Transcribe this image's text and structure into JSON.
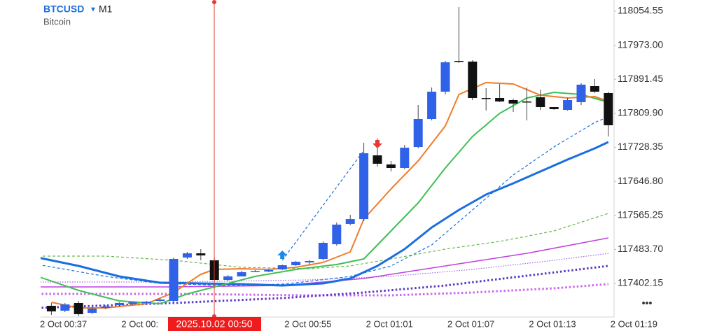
{
  "chart_data": {
    "type": "candlestick",
    "symbol": "BTCUSD",
    "timeframe": "M1",
    "subtitle": "Bitcoin",
    "crosshair_label": "2025.10.02 00:50",
    "up_color": "#2f62e8",
    "down_color": "#111111",
    "categories": [
      "2 Oct 00:37",
      null,
      null,
      null,
      null,
      null,
      "2 Oct 00:",
      null,
      null,
      null,
      null,
      null,
      null,
      null,
      null,
      null,
      null,
      null,
      "2 Oct 00:55",
      null,
      null,
      null,
      null,
      null,
      "2 Oct 01:01",
      null,
      null,
      null,
      null,
      null,
      "2 Oct 01:07",
      null,
      null,
      null,
      null,
      null,
      "2 Oct 01:13",
      null,
      null,
      null,
      null,
      null,
      "2 Oct 01:19"
    ],
    "open": [
      null,
      117348.6,
      117336.9,
      117355.3,
      117331.8,
      117343.5,
      117350.2,
      117353.6,
      117355.3,
      117360.3,
      117360.3,
      117464.3,
      117474.3,
      117457.6,
      117410.6,
      117419.0,
      117430.7,
      117430.7,
      117435.8,
      117445.8,
      117452.5,
      117460.9,
      117496.1,
      117544.8,
      117556.4,
      117709.1,
      117687.3,
      117678.9,
      117729.2,
      117796.3,
      117861.7,
      117935.5,
      117933.8,
      117846.6,
      117846.6,
      117841.6,
      117838.2,
      117848.3,
      117824.8,
      117818.1,
      117836.6,
      117875.1,
      117858.4
    ],
    "high": [
      null,
      117355.3,
      117355.3,
      117360.3,
      117346.9,
      117350.2,
      117356.9,
      117358.6,
      117360.3,
      117367.0,
      117464.3,
      117477.7,
      117484.4,
      117464.3,
      117422.4,
      117432.4,
      117434.1,
      117435.8,
      117447.5,
      117455.9,
      117457.6,
      117502.8,
      117548.1,
      117566.6,
      117739.3,
      117749.4,
      117695.7,
      117734.3,
      117829.9,
      117871.8,
      117935.5,
      118064.6,
      117937.2,
      117870.1,
      117880.2,
      117844.9,
      117871.8,
      117866.7,
      117824.8,
      117846.6,
      117881.8,
      117891.9,
      117861.7
    ],
    "low": [
      null,
      117326.8,
      117333.5,
      117323.4,
      117328.5,
      117340.2,
      117346.9,
      117350.2,
      117351.9,
      117356.9,
      117356.9,
      117460.9,
      117457.6,
      117407.2,
      117407.2,
      117419.0,
      117429.1,
      117429.1,
      117434.1,
      117444.1,
      117447.5,
      117457.6,
      117492.8,
      117541.4,
      117551.5,
      117682.3,
      117670.5,
      117675.6,
      117725.9,
      117792.9,
      117855.0,
      117930.5,
      117841.6,
      117816.4,
      117836.6,
      117813.1,
      117792.9,
      117818.1,
      117818.1,
      117816.4,
      117829.9,
      117858.4,
      117754.4
    ],
    "close": [
      null,
      117335.2,
      117351.9,
      117328.5,
      117341.9,
      117346.9,
      117355.3,
      117356.9,
      117358.6,
      117363.6,
      117460.9,
      117474.3,
      117469.3,
      117410.6,
      117419.0,
      117429.1,
      117432.4,
      117434.1,
      117445.8,
      117454.2,
      117455.9,
      117499.5,
      117543.1,
      117556.4,
      117714.1,
      117689.0,
      117678.9,
      117727.5,
      117796.3,
      117861.7,
      117932.1,
      117933.8,
      117846.6,
      117844.9,
      117838.2,
      117833.2,
      117836.6,
      117824.8,
      117819.8,
      117841.6,
      117878.5,
      117861.7,
      117781.2
    ],
    "lines": [
      {
        "color": "#cc66ee",
        "style": "dotted-thick",
        "x": [
          0,
          10,
          20,
          26,
          32,
          38,
          42
        ],
        "values": [
          117377.1,
          117377.1,
          117373.7,
          117373.7,
          117380.4,
          117390.5,
          117400.5
        ]
      },
      {
        "color": "#5a3bbf",
        "style": "dotted-thick",
        "x": [
          0,
          10,
          18,
          24,
          30,
          36,
          42
        ],
        "values": [
          117343.5,
          117355.3,
          117367.0,
          117380.4,
          117397.2,
          117420.7,
          117444.1
        ]
      },
      {
        "color": "#a066e8",
        "style": "dotted",
        "x": [
          0,
          10,
          20,
          26,
          32,
          38,
          42
        ],
        "values": [
          117405.6,
          117405.6,
          117410.6,
          117419.0,
          117435.8,
          117457.6,
          117474.3
        ]
      },
      {
        "color": "#c040e0",
        "style": "solid",
        "x": [
          0,
          10,
          18,
          24,
          30,
          36,
          42
        ],
        "values": [
          117393.8,
          117393.8,
          117397.2,
          117414.0,
          117444.1,
          117474.3,
          117511.2
        ]
      },
      {
        "color": "#66b84a",
        "style": "dashed",
        "x": [
          0,
          5,
          10,
          15,
          20,
          23,
          26,
          30,
          34,
          38,
          42
        ],
        "values": [
          117467.6,
          117467.6,
          117457.6,
          117440.8,
          117437.4,
          117444.1,
          117460.9,
          117484.4,
          117502.8,
          117528.0,
          117569.9
        ]
      },
      {
        "color": "#1a6ee0",
        "style": "dashed",
        "x": [
          0,
          5,
          9,
          14,
          18,
          20,
          23,
          26,
          29,
          32,
          35,
          38,
          41,
          42
        ],
        "values": [
          117447.5,
          117419.0,
          117402.2,
          117397.2,
          117400.5,
          117407.2,
          117419.0,
          117444.1,
          117494.5,
          117578.3,
          117662.1,
          117729.2,
          117787.9,
          117801.3
        ]
      },
      {
        "color": "#1a6ee0",
        "style": "dashed",
        "x": [
          18,
          24
        ],
        "values": [
          117457.6,
          117720.8
        ]
      },
      {
        "color": "#1a6ee0",
        "style": "thick",
        "x": [
          0,
          3,
          6,
          9,
          12,
          15,
          18,
          21,
          23,
          25,
          27,
          29,
          31,
          33,
          35,
          37,
          39,
          41,
          42
        ],
        "values": [
          117464.3,
          117444.1,
          117419.0,
          117403.9,
          117402.2,
          117400.5,
          117397.2,
          117402.2,
          117414.0,
          117444.1,
          117484.4,
          117536.4,
          117578.3,
          117615.2,
          117642.0,
          117670.5,
          117699.0,
          117725.9,
          117741.0
        ]
      },
      {
        "color": "#3fbf55",
        "style": "medium",
        "x": [
          0,
          3,
          6,
          9,
          11,
          13,
          16,
          19,
          22,
          24,
          26,
          28,
          30,
          32,
          34,
          36,
          38,
          40,
          42
        ],
        "values": [
          117419.0,
          117385.5,
          117360.3,
          117353.6,
          117377.1,
          117393.8,
          117419.0,
          117435.8,
          117447.5,
          117460.9,
          117528.0,
          117595.1,
          117678.9,
          117754.4,
          117809.7,
          117846.6,
          117860.0,
          117855.0,
          117836.6
        ]
      },
      {
        "color": "#f07c2a",
        "style": "medium",
        "x": [
          1,
          3,
          5,
          8,
          10,
          12,
          13,
          15,
          17,
          19,
          21,
          23,
          24,
          26,
          28,
          30,
          31,
          33,
          35,
          37,
          39,
          41,
          42
        ],
        "values": [
          117356.9,
          117343.5,
          117343.5,
          117353.6,
          117380.4,
          117424.0,
          117435.8,
          117437.4,
          117435.8,
          117440.8,
          117452.5,
          117477.7,
          117556.4,
          117628.6,
          117695.7,
          117779.5,
          117855.0,
          117883.5,
          117880.2,
          117853.3,
          117846.6,
          117850.0,
          117838.2
        ]
      }
    ],
    "signals": [
      {
        "direction": "up",
        "color": "#1e88e5",
        "x": 18,
        "value": 117460.9
      },
      {
        "direction": "down",
        "color": "#e53935",
        "x": 25,
        "value": 117725.9
      }
    ],
    "ylim": [
      117323.4,
      118081.4
    ],
    "yticks": [
      118054.55,
      {
        "value": 117973,
        "label": "117973.00"
      },
      117891.45,
      {
        "value": 117809.9,
        "label": "117809.90"
      },
      117728.35,
      {
        "value": 117646.8,
        "label": "117646.80"
      },
      117565.25,
      {
        "value": 117483.7,
        "label": "117483.70"
      },
      117402.15
    ]
  }
}
